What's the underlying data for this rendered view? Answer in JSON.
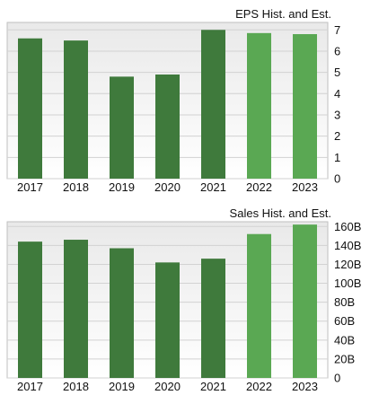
{
  "chart_data": [
    {
      "type": "bar",
      "title": "EPS Hist. and Est.",
      "categories": [
        "2017",
        "2018",
        "2019",
        "2020",
        "2021",
        "2022",
        "2023"
      ],
      "values": [
        6.6,
        6.5,
        4.8,
        4.9,
        7.0,
        6.85,
        6.8
      ],
      "estimate_flags": [
        false,
        false,
        false,
        false,
        false,
        true,
        true
      ],
      "ylim": [
        0,
        7.35
      ],
      "yticks": [
        "0",
        "1",
        "2",
        "3",
        "4",
        "5",
        "6",
        "7"
      ],
      "ytick_values": [
        0,
        1,
        2,
        3,
        4,
        5,
        6,
        7
      ],
      "grid": true,
      "colors": {
        "historical": "#3f7a3c",
        "estimate": "#5aa853",
        "grid": "#d2d2d2",
        "frame": "#bfbfbf"
      }
    },
    {
      "type": "bar",
      "title": "Sales Hist. and Est.",
      "categories": [
        "2017",
        "2018",
        "2019",
        "2020",
        "2021",
        "2022",
        "2023"
      ],
      "values": [
        144,
        146,
        137,
        122,
        126,
        152,
        162
      ],
      "estimate_flags": [
        false,
        false,
        false,
        false,
        false,
        true,
        true
      ],
      "ylim": [
        0,
        165
      ],
      "yticks": [
        "0",
        "20B",
        "40B",
        "60B",
        "80B",
        "100B",
        "120B",
        "140B",
        "160B"
      ],
      "ytick_values": [
        0,
        20,
        40,
        60,
        80,
        100,
        120,
        140,
        160
      ],
      "grid": true,
      "colors": {
        "historical": "#3f7a3c",
        "estimate": "#5aa853",
        "grid": "#d2d2d2",
        "frame": "#bfbfbf"
      }
    }
  ]
}
